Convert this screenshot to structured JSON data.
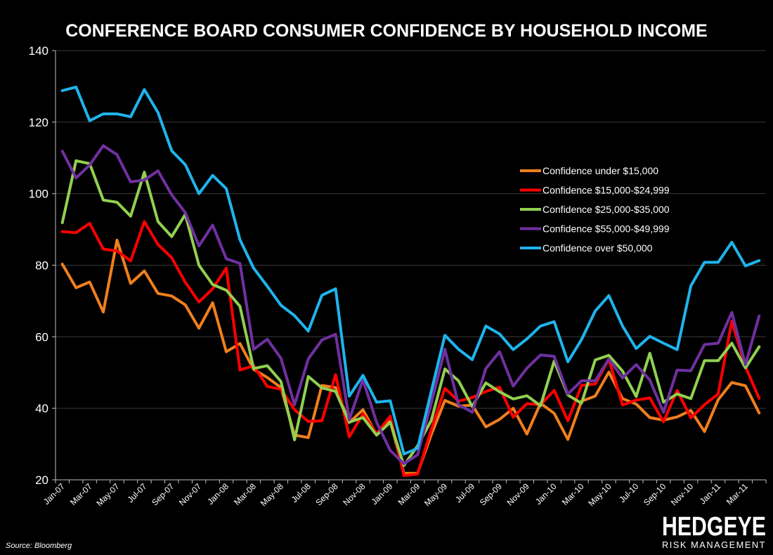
{
  "chart_data": {
    "type": "line",
    "title": "CONFERENCE BOARD CONSUMER CONFIDENCE BY HOUSEHOLD INCOME",
    "xlabel": "",
    "ylabel": "",
    "ylim": [
      20,
      140
    ],
    "yticks": [
      20,
      40,
      60,
      80,
      100,
      120,
      140
    ],
    "grid": true,
    "legend_position": "right",
    "x": [
      "Jan-07",
      "Feb-07",
      "Mar-07",
      "Apr-07",
      "May-07",
      "Jun-07",
      "Jul-07",
      "Aug-07",
      "Sep-07",
      "Oct-07",
      "Nov-07",
      "Dec-07",
      "Jan-08",
      "Feb-08",
      "Mar-08",
      "Apr-08",
      "May-08",
      "Jun-08",
      "Jul-08",
      "Aug-08",
      "Sep-08",
      "Oct-08",
      "Nov-08",
      "Dec-08",
      "Jan-09",
      "Feb-09",
      "Mar-09",
      "Apr-09",
      "May-09",
      "Jun-09",
      "Jul-09",
      "Aug-09",
      "Sep-09",
      "Oct-09",
      "Nov-09",
      "Dec-09",
      "Jan-10",
      "Feb-10",
      "Mar-10",
      "Apr-10",
      "May-10",
      "Jun-10",
      "Jul-10",
      "Aug-10",
      "Sep-10",
      "Oct-10",
      "Nov-10",
      "Dec-10",
      "Jan-11",
      "Feb-11",
      "Mar-11",
      "Apr-11"
    ],
    "x_tick_labels": [
      "Jan-07",
      "Mar-07",
      "May-07",
      "Jul-07",
      "Sep-07",
      "Nov-07",
      "Jan-08",
      "Mar-08",
      "May-08",
      "Jul-08",
      "Sep-08",
      "Nov-08",
      "Jan-09",
      "Mar-09",
      "May-09",
      "Jul-09",
      "Sep-09",
      "Nov-09",
      "Jan-10",
      "Mar-10",
      "May-10",
      "Jul-10",
      "Sep-10",
      "Nov-10",
      "Jan-11",
      "Mar-11"
    ],
    "series": [
      {
        "name": "Confidence under $15,000",
        "color": "#f07f1d",
        "values": [
          80.3,
          73.7,
          75.3,
          66.9,
          87.0,
          74.9,
          78.4,
          72.1,
          71.4,
          68.9,
          62.4,
          69.5,
          55.8,
          58.1,
          50.9,
          48.6,
          45.8,
          32.5,
          31.8,
          46.4,
          45.8,
          36.0,
          39.6,
          32.6,
          36.5,
          21.8,
          21.8,
          32.6,
          42.2,
          40.6,
          40.9,
          34.8,
          36.9,
          40.0,
          32.8,
          41.4,
          38.6,
          31.3,
          42.0,
          43.4,
          50.1,
          42.7,
          41.2,
          37.4,
          36.7,
          37.6,
          39.4,
          33.5,
          42.4,
          47.2,
          46.3,
          38.7
        ]
      },
      {
        "name": "Confidence $15,000-$24,999",
        "color": "#ff0000",
        "values": [
          89.4,
          89.1,
          91.7,
          84.5,
          84.0,
          81.2,
          92.2,
          85.8,
          82.1,
          75.2,
          69.7,
          73.4,
          79.2,
          50.7,
          51.9,
          46.1,
          45.3,
          39.6,
          36.3,
          36.5,
          49.4,
          32.0,
          38.4,
          32.9,
          37.8,
          21.2,
          21.6,
          34.0,
          45.6,
          42.0,
          43.0,
          44.7,
          45.9,
          37.5,
          41.3,
          41.0,
          45.0,
          36.5,
          46.4,
          46.8,
          53.7,
          40.9,
          42.3,
          42.9,
          36.2,
          45.0,
          37.3,
          41.0,
          44.0,
          64.3,
          51.6,
          42.8
        ]
      },
      {
        "name": "Confidence $25,000-$35,000",
        "color": "#92d050",
        "values": [
          91.9,
          109.2,
          108.4,
          98.2,
          97.6,
          93.7,
          106.0,
          92.2,
          88.0,
          94.2,
          80.0,
          74.6,
          73.0,
          68.5,
          51.1,
          51.9,
          47.5,
          31.2,
          48.9,
          45.7,
          44.7,
          36.1,
          37.4,
          32.5,
          36.1,
          24.0,
          29.5,
          36.6,
          51.0,
          47.7,
          40.5,
          47.1,
          44.6,
          42.6,
          43.5,
          40.7,
          53.2,
          43.7,
          41.4,
          53.5,
          54.8,
          50.4,
          43.3,
          55.4,
          41.7,
          44.0,
          42.7,
          53.3,
          53.3,
          58.2,
          51.3,
          57.2
        ]
      },
      {
        "name": "Confidence $55,000-$49,999",
        "color": "#7030a0",
        "values": [
          111.9,
          104.4,
          108.0,
          113.4,
          110.9,
          103.3,
          103.8,
          106.4,
          99.7,
          94.7,
          85.4,
          91.2,
          81.8,
          80.5,
          56.5,
          59.3,
          54.0,
          41.0,
          53.8,
          59.1,
          60.7,
          36.8,
          48.0,
          36.1,
          28.2,
          24.5,
          27.0,
          41.4,
          56.5,
          41.0,
          38.9,
          51.1,
          55.8,
          46.2,
          51.2,
          54.9,
          54.5,
          44.0,
          47.7,
          47.7,
          53.8,
          48.5,
          52.2,
          47.9,
          38.9,
          50.7,
          50.5,
          57.8,
          58.2,
          66.8,
          52.2,
          65.8
        ]
      },
      {
        "name": "Confidence over $50,000",
        "color": "#1fb4ec",
        "values": [
          128.8,
          129.8,
          120.4,
          122.3,
          122.3,
          121.5,
          129.1,
          122.7,
          112.0,
          108.1,
          100.0,
          105.1,
          101.4,
          87.1,
          79.2,
          74.1,
          68.8,
          65.9,
          61.6,
          71.6,
          73.4,
          43.4,
          49.2,
          41.7,
          42.1,
          27.2,
          28.8,
          44.7,
          60.4,
          56.5,
          53.6,
          63.0,
          60.8,
          56.4,
          59.4,
          63.0,
          64.2,
          53.0,
          59.2,
          67.2,
          71.5,
          63.0,
          56.7,
          60.1,
          58.2,
          56.4,
          74.2,
          80.8,
          80.8,
          86.4,
          79.8,
          81.3
        ]
      }
    ],
    "source": "Source: Bloomberg"
  },
  "logo": {
    "main": "HEDGEYE",
    "sub": "RISK MANAGEMENT"
  }
}
